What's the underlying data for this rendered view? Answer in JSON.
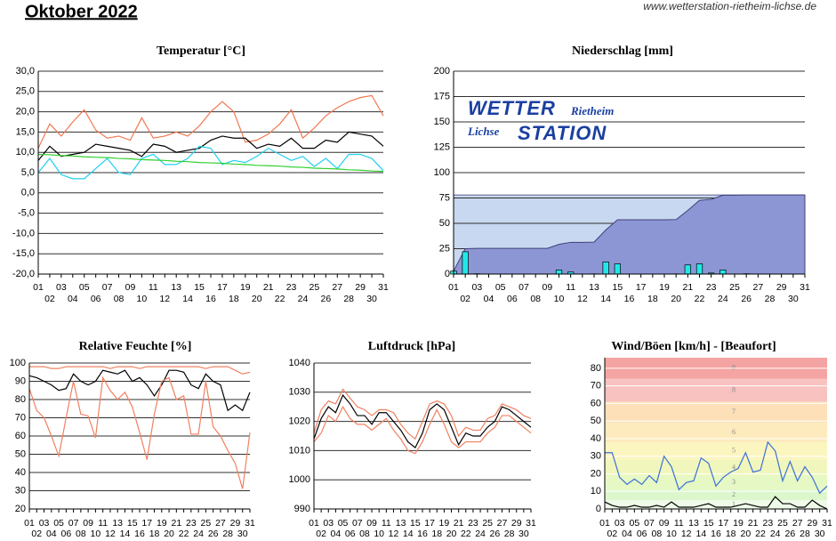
{
  "header": {
    "title": "Oktober 2022",
    "source": "www.wetterstation-rietheim-lichse.de"
  },
  "chart_data": [
    {
      "type": "line",
      "title": "Temperatur [°C]",
      "categories": [
        "01",
        "02",
        "03",
        "04",
        "05",
        "06",
        "07",
        "08",
        "09",
        "10",
        "11",
        "12",
        "13",
        "14",
        "15",
        "16",
        "17",
        "18",
        "19",
        "20",
        "21",
        "22",
        "23",
        "24",
        "25",
        "26",
        "27",
        "28",
        "29",
        "30",
        "31"
      ],
      "series": [
        {
          "color": "#f07850",
          "values": [
            11,
            17,
            14,
            17.5,
            20.5,
            15.5,
            13.5,
            14,
            13,
            18.5,
            13.5,
            14,
            15,
            14,
            16.5,
            20,
            22.5,
            20,
            12.5,
            13,
            14.5,
            17,
            20.5,
            13.5,
            16,
            19,
            21,
            22.5,
            23.5,
            24,
            19
          ]
        },
        {
          "color": "#000000",
          "values": [
            8,
            11.5,
            9,
            9.5,
            10,
            12,
            11.5,
            11,
            10.5,
            9,
            12,
            11.5,
            10,
            10.5,
            11,
            13,
            14,
            13.5,
            13.5,
            11,
            12,
            11.5,
            13.5,
            11,
            11,
            13,
            12.5,
            15,
            14.5,
            14,
            11.5
          ]
        },
        {
          "color": "#20d0f0",
          "values": [
            5,
            8.5,
            4.5,
            3.5,
            3.5,
            6,
            8.5,
            5,
            4.5,
            8.5,
            9.5,
            7,
            7,
            8.5,
            11.5,
            11,
            7,
            8,
            7.5,
            9,
            11,
            9.5,
            8,
            9,
            6.5,
            8.5,
            6,
            9.5,
            9.5,
            8.5,
            5.5
          ]
        },
        {
          "color": "#30d030",
          "values": [
            9.5,
            9.4,
            9.2,
            9.1,
            8.9,
            8.8,
            8.7,
            8.5,
            8.4,
            8.2,
            8.1,
            8.0,
            7.8,
            7.7,
            7.5,
            7.4,
            7.3,
            7.1,
            7.0,
            6.8,
            6.7,
            6.6,
            6.4,
            6.3,
            6.1,
            6.0,
            5.9,
            5.7,
            5.6,
            5.4,
            5.3
          ]
        }
      ],
      "ylim": [
        -20,
        30
      ],
      "yticks": [
        {
          "value": -20,
          "label": "-20,0"
        },
        {
          "value": -15,
          "label": "-15,0"
        },
        {
          "value": -10,
          "label": "-10,0"
        },
        {
          "value": -5,
          "label": "-5,0"
        },
        {
          "value": 0,
          "label": "0,0"
        },
        {
          "value": 5,
          "label": "5,0"
        },
        {
          "value": 10,
          "label": "10,0"
        },
        {
          "value": 15,
          "label": "15,0"
        },
        {
          "value": 20,
          "label": "20,0"
        },
        {
          "value": 25,
          "label": "25,0"
        },
        {
          "value": 30,
          "label": "30,0"
        }
      ],
      "grid": true,
      "grid_color": "#303030"
    },
    {
      "type": "bar",
      "title": "Niederschlag [mm]",
      "categories": [
        "01",
        "02",
        "03",
        "04",
        "05",
        "06",
        "07",
        "08",
        "09",
        "10",
        "11",
        "12",
        "13",
        "14",
        "15",
        "16",
        "17",
        "18",
        "19",
        "20",
        "21",
        "22",
        "23",
        "24",
        "25",
        "26",
        "27",
        "28",
        "29",
        "30",
        "31"
      ],
      "values": [
        3,
        22,
        0.3,
        0,
        0,
        0,
        0,
        0,
        0,
        4,
        2,
        0,
        0.2,
        12,
        10,
        0,
        0,
        0,
        0,
        0.2,
        9,
        10,
        1,
        4,
        0,
        0.3,
        0,
        0,
        0,
        0,
        0
      ],
      "color": "#20e8e8",
      "cumulative_color": "#8c96d4",
      "band": 78,
      "band_color": "#c8d8f0",
      "logo": {
        "wetter": "WETTER",
        "place1": "Rietheim",
        "place2": "Lichse",
        "station": "STATION"
      },
      "ylim": [
        0,
        200
      ],
      "yticks": [
        0,
        25,
        50,
        75,
        100,
        125,
        150,
        175,
        200
      ],
      "grid": true,
      "grid_color": "#303030"
    },
    {
      "type": "line",
      "title": "Relative Feuchte [%]",
      "categories": [
        "01",
        "02",
        "03",
        "04",
        "05",
        "06",
        "07",
        "08",
        "09",
        "10",
        "11",
        "12",
        "13",
        "14",
        "15",
        "16",
        "17",
        "18",
        "19",
        "20",
        "21",
        "22",
        "23",
        "24",
        "25",
        "26",
        "27",
        "28",
        "29",
        "30",
        "31"
      ],
      "series": [
        {
          "color": "#f08060",
          "values": [
            98,
            98,
            98,
            97,
            97,
            98,
            98,
            98,
            98,
            98,
            98,
            97,
            98,
            98,
            98,
            97,
            98,
            98,
            98,
            98,
            98,
            98,
            98,
            98,
            97,
            98,
            98,
            98,
            96,
            94,
            95
          ]
        },
        {
          "color": "#000000",
          "values": [
            93,
            92,
            90,
            88,
            85,
            86,
            94,
            90,
            88,
            90,
            96,
            95,
            94,
            96,
            90,
            92,
            88,
            82,
            88,
            96,
            96,
            95,
            88,
            86,
            94,
            90,
            88,
            74,
            77,
            74,
            84
          ]
        },
        {
          "color": "#f08060",
          "values": [
            86,
            74,
            70,
            60,
            49,
            70,
            90,
            72,
            71,
            59,
            92,
            85,
            80,
            84,
            76,
            62,
            47,
            72,
            90,
            92,
            80,
            82,
            61,
            61,
            90,
            65,
            60,
            52,
            45,
            31,
            62
          ]
        }
      ],
      "ylim": [
        20,
        100
      ],
      "yticks": [
        20,
        30,
        40,
        50,
        60,
        70,
        80,
        90,
        100
      ],
      "grid": true,
      "grid_color": "#303030"
    },
    {
      "type": "line",
      "title": "Luftdruck [hPa]",
      "categories": [
        "01",
        "02",
        "03",
        "04",
        "05",
        "06",
        "07",
        "08",
        "09",
        "10",
        "11",
        "12",
        "13",
        "14",
        "15",
        "16",
        "17",
        "18",
        "19",
        "20",
        "21",
        "22",
        "23",
        "24",
        "25",
        "26",
        "27",
        "28",
        "29",
        "30",
        "31"
      ],
      "series": [
        {
          "color": "#f08060",
          "values": [
            1016,
            1024,
            1027,
            1026,
            1031,
            1028,
            1025,
            1024,
            1022,
            1024,
            1024,
            1023,
            1019,
            1016,
            1014,
            1020,
            1026,
            1027,
            1026,
            1022,
            1015,
            1018,
            1017,
            1017,
            1021,
            1022,
            1026,
            1025,
            1024,
            1022,
            1021
          ]
        },
        {
          "color": "#000000",
          "values": [
            1014,
            1021,
            1025,
            1023,
            1029,
            1026,
            1022,
            1022,
            1019,
            1023,
            1023,
            1020,
            1017,
            1013,
            1011,
            1016,
            1024,
            1026,
            1024,
            1018,
            1012,
            1016,
            1015,
            1015,
            1018,
            1020,
            1025,
            1024,
            1022,
            1020,
            1018
          ]
        },
        {
          "color": "#f08060",
          "values": [
            1013,
            1016,
            1022,
            1020,
            1025,
            1021,
            1019,
            1019,
            1017,
            1019,
            1021,
            1017,
            1014,
            1010,
            1009,
            1013,
            1019,
            1024,
            1019,
            1013,
            1011,
            1013,
            1013,
            1013,
            1016,
            1018,
            1022,
            1022,
            1020,
            1018,
            1016
          ]
        }
      ],
      "ylim": [
        990,
        1040
      ],
      "yticks": [
        990,
        1000,
        1010,
        1020,
        1030,
        1040
      ],
      "grid": true,
      "grid_color": "#303030"
    },
    {
      "type": "line",
      "title": "Wind/Böen [km/h] - [Beaufort]",
      "categories": [
        "01",
        "02",
        "03",
        "04",
        "05",
        "06",
        "07",
        "08",
        "09",
        "10",
        "11",
        "12",
        "13",
        "14",
        "15",
        "16",
        "17",
        "18",
        "19",
        "20",
        "21",
        "22",
        "23",
        "24",
        "25",
        "26",
        "27",
        "28",
        "29",
        "30",
        "31"
      ],
      "series": [
        {
          "color": "#3a6fd8",
          "values": [
            32,
            32,
            18,
            14,
            17,
            14,
            19,
            15,
            30,
            24,
            11,
            15,
            16,
            29,
            26,
            13,
            18,
            21,
            23,
            32,
            21,
            22,
            38,
            33,
            16,
            27,
            16,
            24,
            18,
            9,
            13
          ]
        },
        {
          "color": "#000000",
          "values": [
            4,
            2,
            1,
            1,
            2,
            1,
            1,
            2,
            1,
            4,
            1,
            1,
            1,
            2,
            3,
            1,
            1,
            1,
            2,
            3,
            2,
            1,
            1,
            7,
            3,
            3,
            1,
            1,
            5,
            2,
            0
          ]
        }
      ],
      "bands": [
        {
          "label": "1",
          "from": 0,
          "to": 5,
          "color": "#eefbe8"
        },
        {
          "label": "2",
          "from": 5,
          "to": 11,
          "color": "#dcf7cc"
        },
        {
          "label": "3",
          "from": 11,
          "to": 19,
          "color": "#e6f8c4"
        },
        {
          "label": "4",
          "from": 19,
          "to": 28,
          "color": "#f1f7bc"
        },
        {
          "label": "5",
          "from": 28,
          "to": 38,
          "color": "#fbf5bf"
        },
        {
          "label": "6",
          "from": 38,
          "to": 49,
          "color": "#fdebbd"
        },
        {
          "label": "7",
          "from": 49,
          "to": 61,
          "color": "#fde0b8"
        },
        {
          "label": "8",
          "from": 61,
          "to": 74,
          "color": "#f8c2c0"
        },
        {
          "label": "9",
          "from": 74,
          "to": 86,
          "color": "#f4a4a2"
        }
      ],
      "ylim": [
        0,
        86
      ],
      "yticks": [
        0,
        10,
        20,
        30,
        40,
        50,
        60,
        70,
        80
      ],
      "grid": true,
      "grid_color": "#ffffff"
    }
  ]
}
